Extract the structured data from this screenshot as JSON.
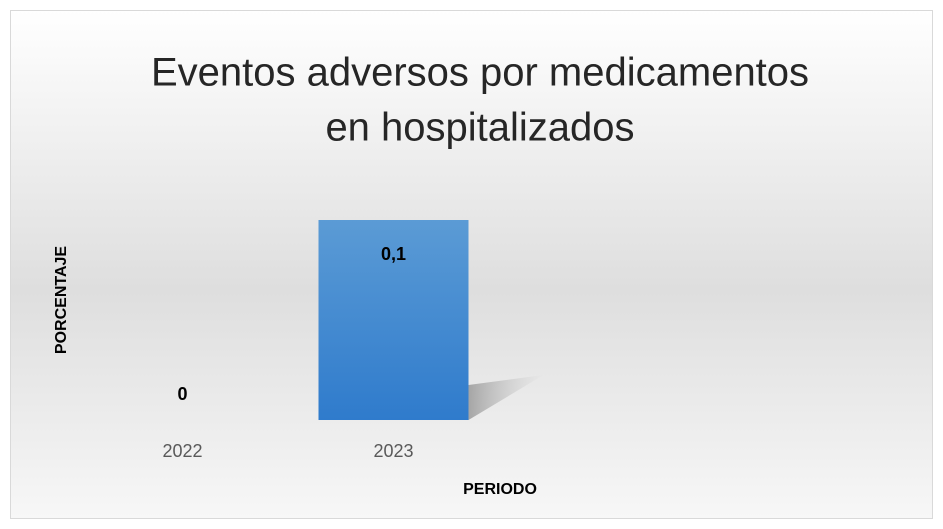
{
  "chart_data": {
    "type": "bar",
    "title": "Eventos adversos por medicamentos en hospitalizados",
    "categories": [
      "2022",
      "2023"
    ],
    "values": [
      0,
      0.1
    ],
    "value_labels": [
      "0",
      "0,1"
    ],
    "color": "#4a90d9",
    "ylim": [
      0,
      0.1
    ],
    "x_label": "PERIODO",
    "y_label": "PORCENTAJE"
  }
}
